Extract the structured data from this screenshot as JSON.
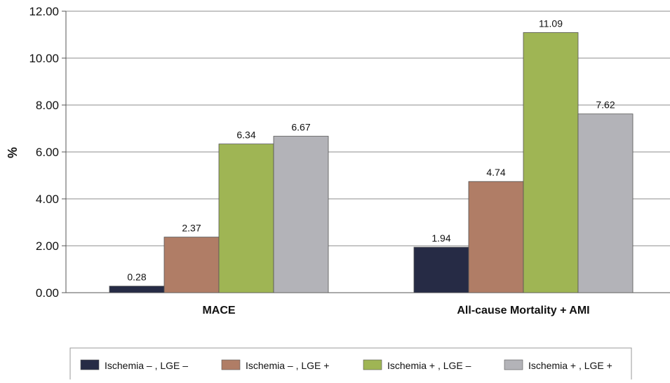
{
  "chart_data": {
    "type": "bar",
    "title": "",
    "xlabel": "",
    "ylabel": "%",
    "ylim": [
      0,
      12
    ],
    "yticks": [
      "0.00",
      "2.00",
      "4.00",
      "6.00",
      "8.00",
      "10.00",
      "12.00"
    ],
    "grid": true,
    "legend_position": "bottom",
    "categories": [
      "MACE",
      "All-cause Mortality + AMI"
    ],
    "series": [
      {
        "name": "Ischemia – , LGE –",
        "color": "#262b45",
        "values": [
          0.28,
          1.94
        ],
        "labels": [
          "0.28",
          "1.94"
        ]
      },
      {
        "name": "Ischemia – , LGE +",
        "color": "#b07d66",
        "values": [
          2.37,
          4.74
        ],
        "labels": [
          "2.37",
          "4.74"
        ]
      },
      {
        "name": "Ischemia + , LGE –",
        "color": "#9fb554",
        "values": [
          6.34,
          11.09
        ],
        "labels": [
          "6.34",
          "11.09"
        ]
      },
      {
        "name": "Ischemia + , LGE +",
        "color": "#b3b3b8",
        "values": [
          6.67,
          7.62
        ],
        "labels": [
          "6.67",
          "7.62"
        ]
      }
    ]
  }
}
